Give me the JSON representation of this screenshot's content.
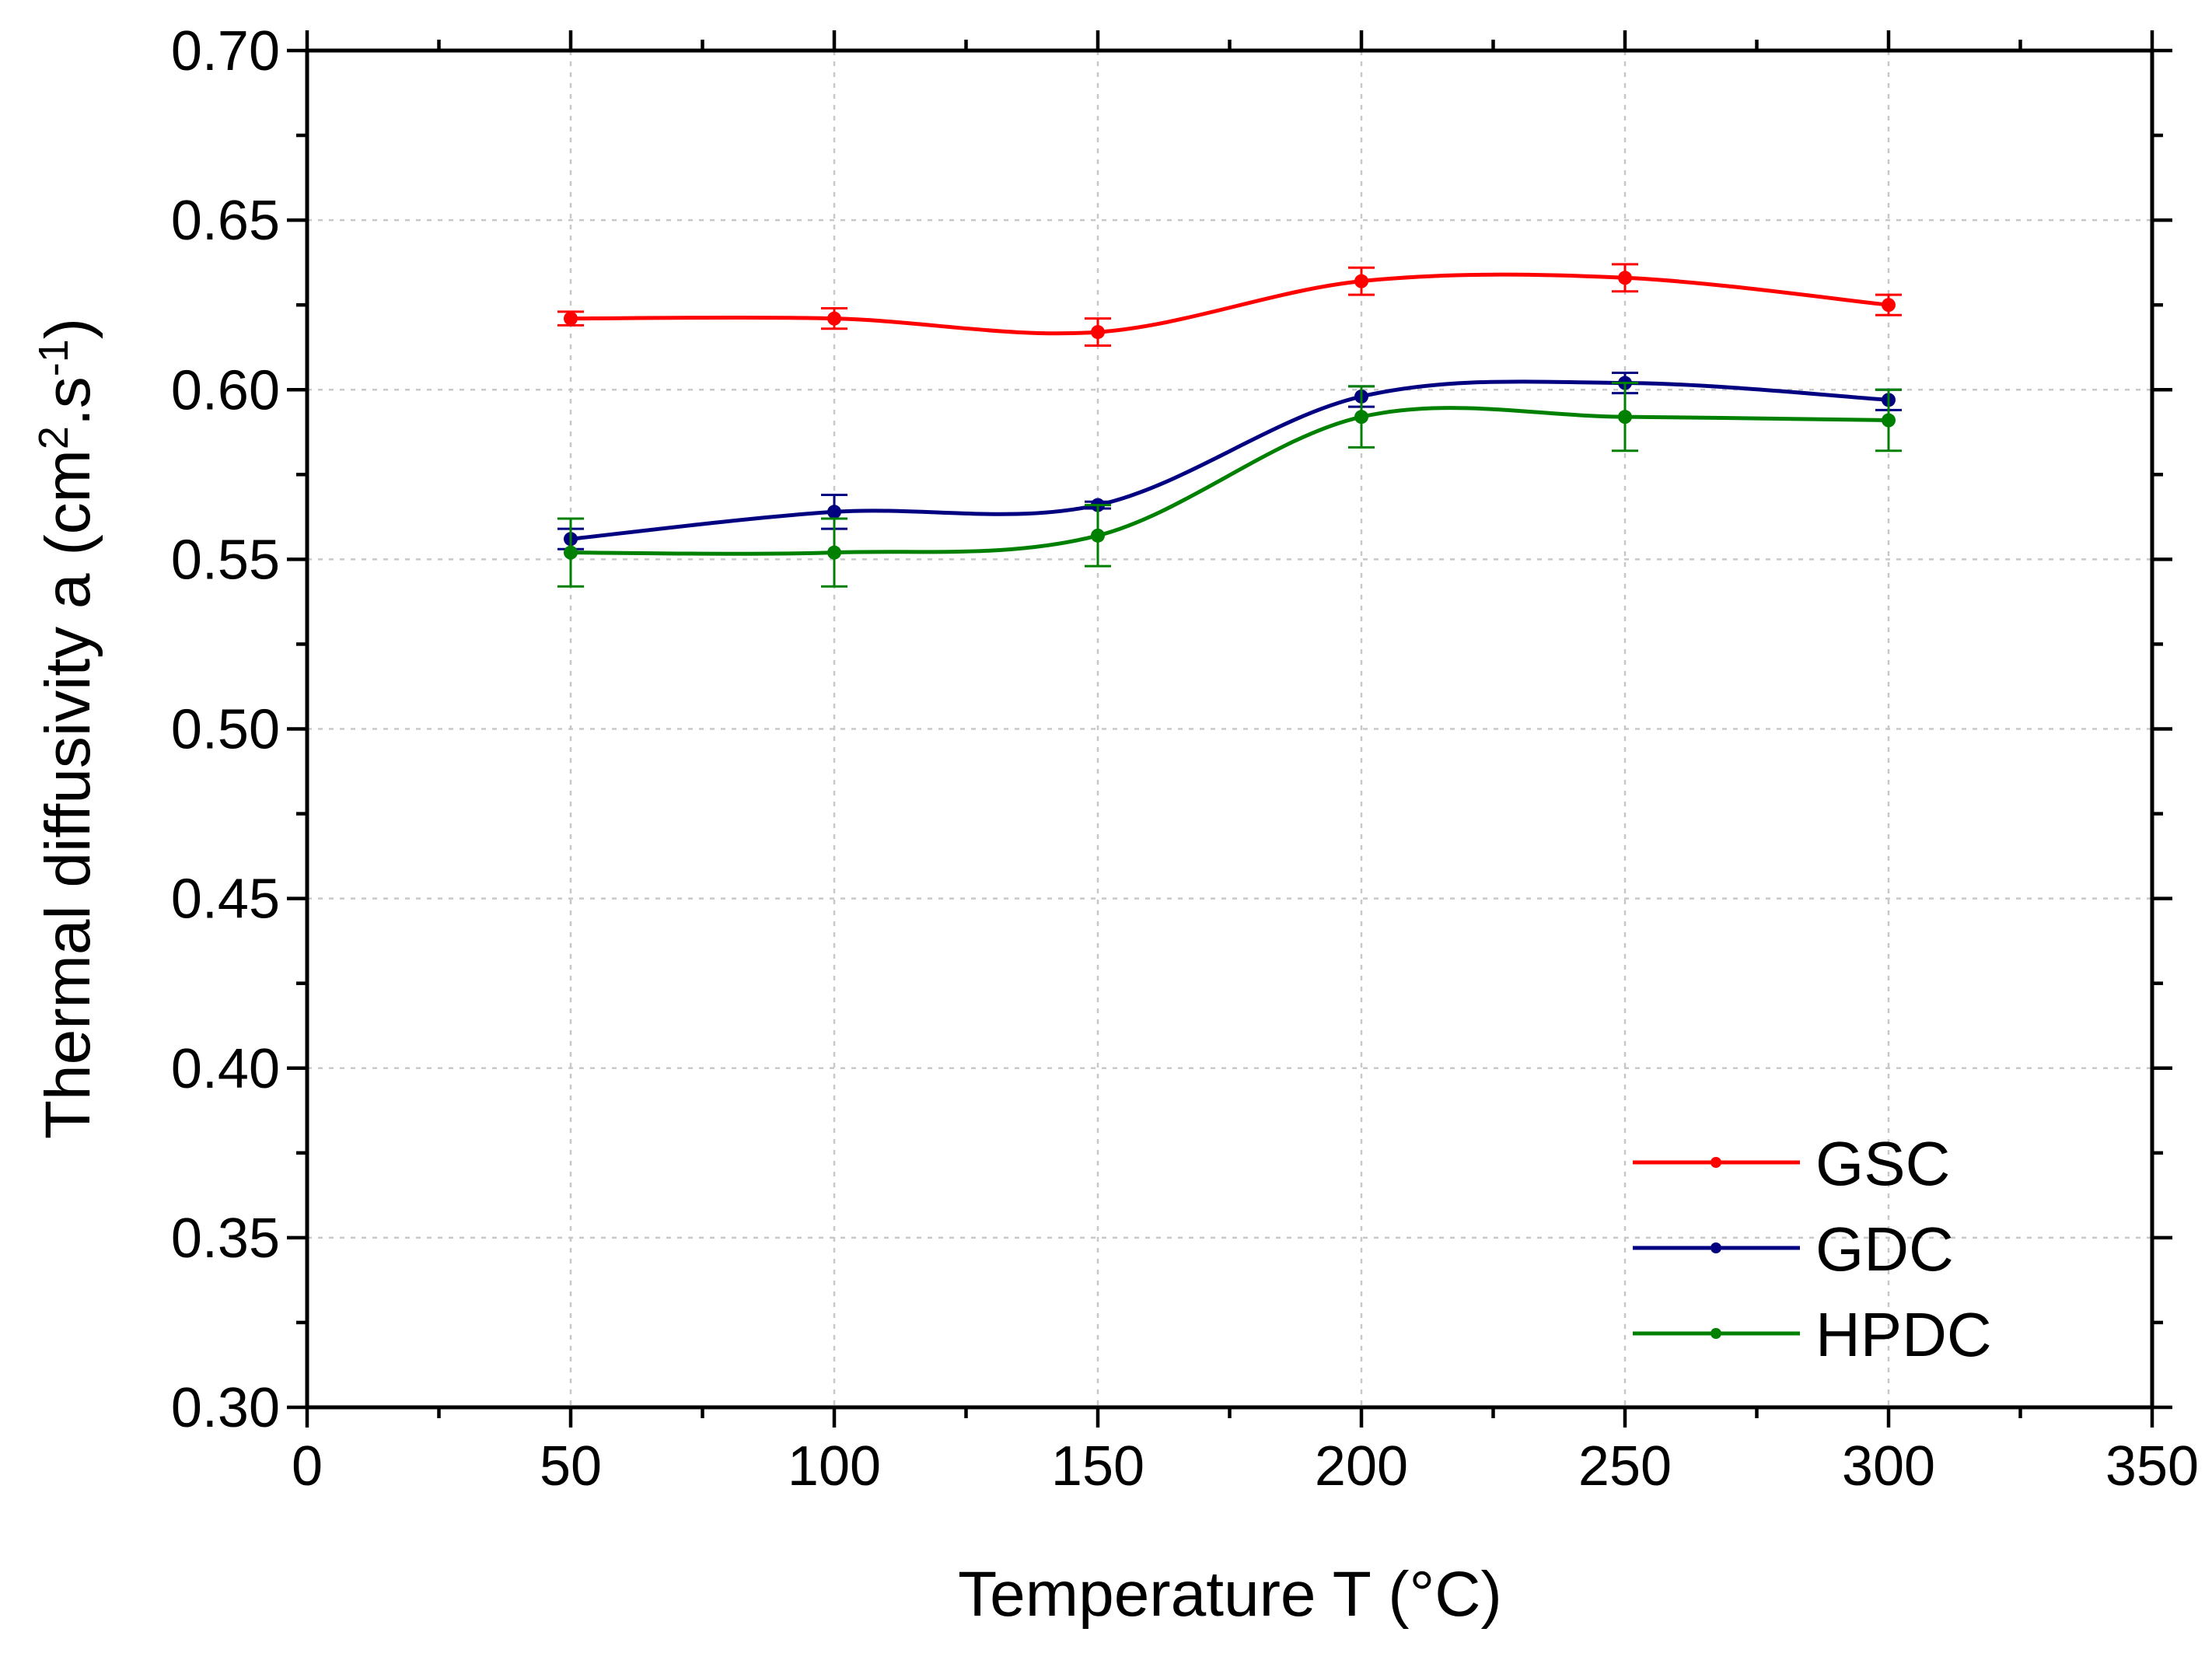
{
  "chart_data": {
    "type": "line",
    "title": "",
    "xlabel": "Temperature T (°C)",
    "ylabel_main": "Thermal diffusivity a (cm",
    "ylabel_sup1": "2",
    "ylabel_mid": ".s",
    "ylabel_sup2": "-1",
    "ylabel_end": ")",
    "xlim": [
      0,
      350
    ],
    "ylim": [
      0.3,
      0.7
    ],
    "xticks": [
      0,
      50,
      100,
      150,
      200,
      250,
      300,
      350
    ],
    "yticks": [
      0.3,
      0.35,
      0.4,
      0.45,
      0.5,
      0.55,
      0.6,
      0.65,
      0.7
    ],
    "xtick_labels": [
      "0",
      "50",
      "100",
      "150",
      "200",
      "250",
      "300",
      "350"
    ],
    "ytick_labels": [
      "0.30",
      "0.35",
      "0.40",
      "0.45",
      "0.50",
      "0.55",
      "0.60",
      "0.65",
      "0.70"
    ],
    "grid": true,
    "legend_position": "bottom-right",
    "x": [
      50,
      100,
      150,
      200,
      250,
      300
    ],
    "series": [
      {
        "name": "GSC",
        "color": "#ff0000",
        "values": [
          0.621,
          0.621,
          0.617,
          0.632,
          0.633,
          0.625
        ],
        "errors": [
          0.002,
          0.003,
          0.004,
          0.004,
          0.004,
          0.003
        ]
      },
      {
        "name": "GDC",
        "color": "#000080",
        "values": [
          0.556,
          0.564,
          0.566,
          0.598,
          0.602,
          0.597
        ],
        "errors": [
          0.003,
          0.005,
          0.001,
          0.003,
          0.003,
          0.003
        ]
      },
      {
        "name": "HPDC",
        "color": "#008000",
        "values": [
          0.552,
          0.552,
          0.557,
          0.592,
          0.592,
          0.591
        ],
        "errors": [
          0.01,
          0.01,
          0.009,
          0.009,
          0.01,
          0.009
        ]
      }
    ]
  }
}
